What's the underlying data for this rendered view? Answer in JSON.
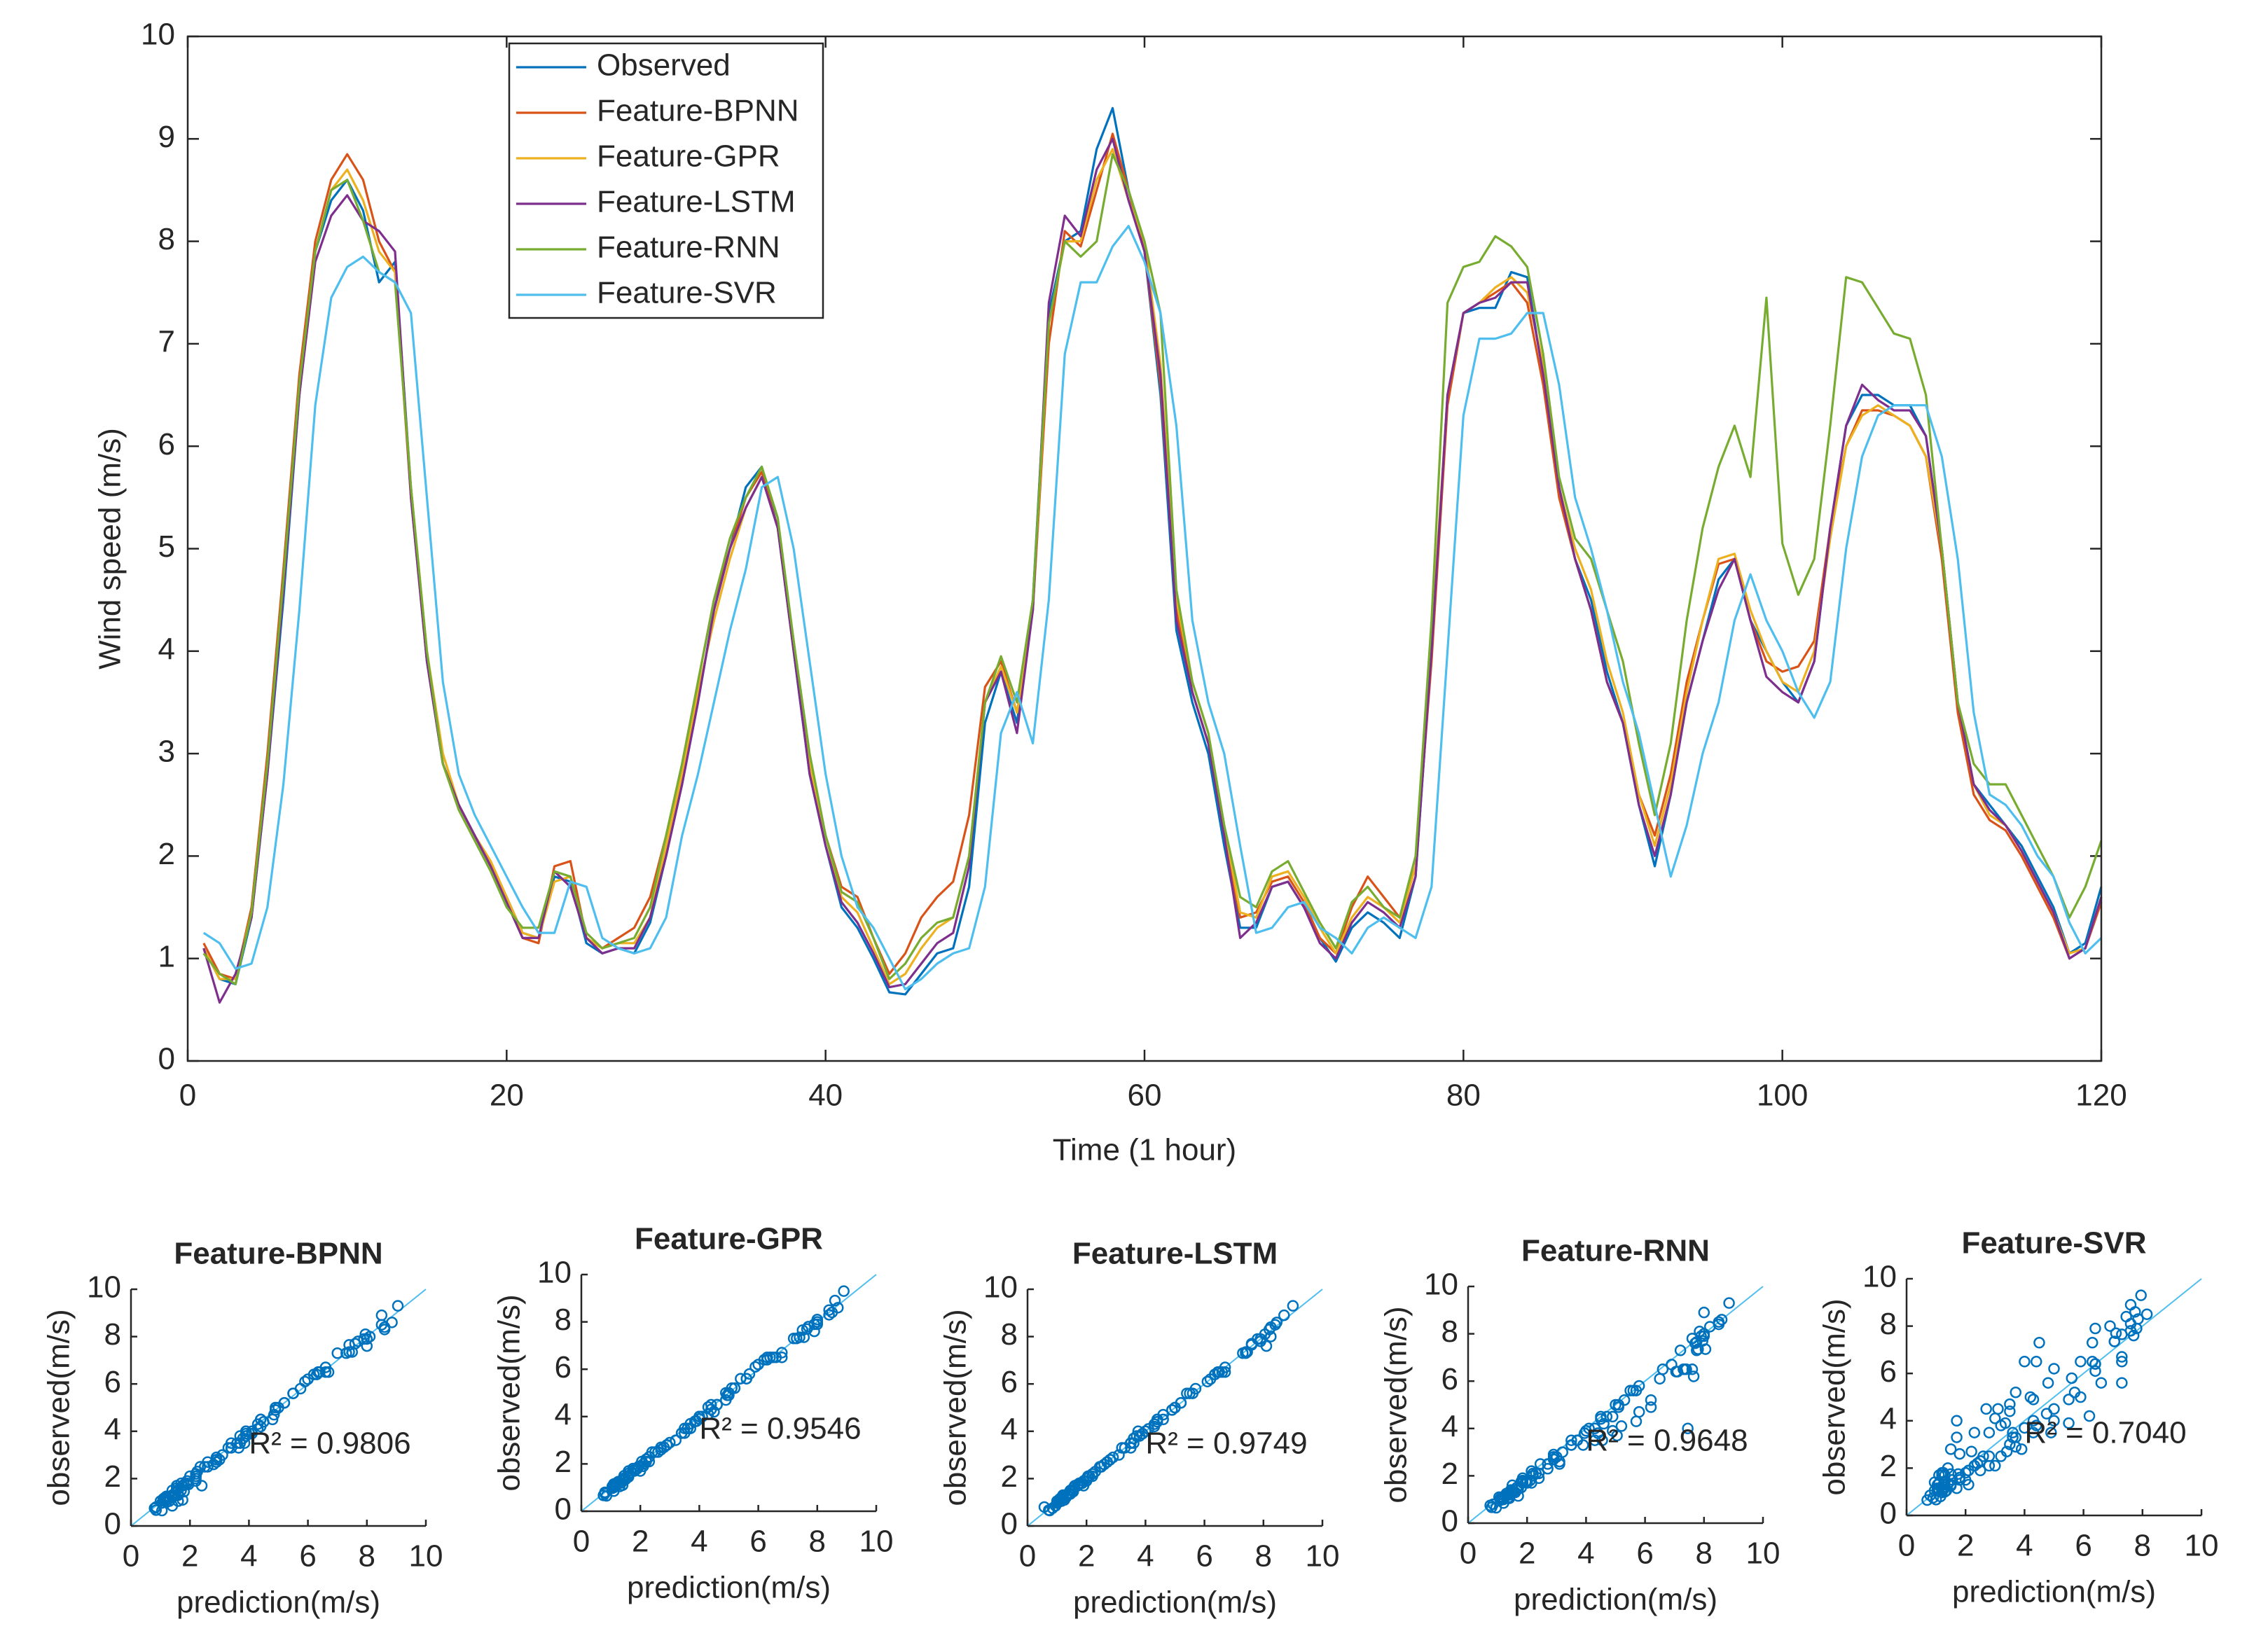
{
  "chart_data": [
    {
      "type": "line",
      "xlabel": "Time (1 hour)",
      "ylabel": "Wind speed (m/s)",
      "xlim": [
        0,
        120
      ],
      "ylim": [
        0,
        10
      ],
      "xticks": [
        0,
        20,
        40,
        60,
        80,
        100,
        120
      ],
      "yticks": [
        0,
        1,
        2,
        3,
        4,
        5,
        6,
        7,
        8,
        9,
        10
      ],
      "legend": "upper-left",
      "x": [
        1,
        2,
        3,
        4,
        5,
        6,
        7,
        8,
        9,
        10,
        11,
        12,
        13,
        14,
        15,
        16,
        17,
        18,
        19,
        20,
        21,
        22,
        23,
        24,
        25,
        26,
        27,
        28,
        29,
        30,
        31,
        32,
        33,
        34,
        35,
        36,
        37,
        38,
        39,
        40,
        41,
        42,
        43,
        44,
        45,
        46,
        47,
        48,
        49,
        50,
        51,
        52,
        53,
        54,
        55,
        56,
        57,
        58,
        59,
        60,
        61,
        62,
        63,
        64,
        65,
        66,
        67,
        68,
        69,
        70,
        71,
        72,
        73,
        74,
        75,
        76,
        77,
        78,
        79,
        80,
        81,
        82,
        83,
        84,
        85,
        86,
        87,
        88,
        89,
        90,
        91,
        92,
        93,
        94,
        95,
        96,
        97,
        98,
        99,
        100,
        101,
        102,
        103,
        104,
        105,
        106,
        107,
        108,
        109,
        110,
        111,
        112,
        113,
        114,
        115,
        116,
        117,
        118,
        119,
        120
      ],
      "series": [
        {
          "name": "Observed",
          "color": "#0072bd",
          "values": [
            1.1,
            0.8,
            0.75,
            1.4,
            2.8,
            4.5,
            6.5,
            7.9,
            8.4,
            8.6,
            8.3,
            7.6,
            7.8,
            5.6,
            3.9,
            2.9,
            2.5,
            2.2,
            1.9,
            1.6,
            1.25,
            1.2,
            1.8,
            1.75,
            1.15,
            1.05,
            1.1,
            1.05,
            1.35,
            2.0,
            2.7,
            3.5,
            4.4,
            5.0,
            5.6,
            5.8,
            5.2,
            4.0,
            2.8,
            2.1,
            1.5,
            1.3,
            1.0,
            0.67,
            0.65,
            0.85,
            1.05,
            1.1,
            1.7,
            3.3,
            3.8,
            3.3,
            4.5,
            7.3,
            8.0,
            8.1,
            8.9,
            9.3,
            8.5,
            7.9,
            6.5,
            4.2,
            3.5,
            3.0,
            2.1,
            1.3,
            1.3,
            1.7,
            1.75,
            1.5,
            1.2,
            0.97,
            1.3,
            1.45,
            1.35,
            1.2,
            1.8,
            4.0,
            6.5,
            7.3,
            7.35,
            7.35,
            7.7,
            7.65,
            6.7,
            5.6,
            4.9,
            4.5,
            3.8,
            3.3,
            2.5,
            1.9,
            2.6,
            3.5,
            4.1,
            4.7,
            4.9,
            4.3,
            4.0,
            3.7,
            3.5,
            3.9,
            5.2,
            6.2,
            6.5,
            6.5,
            6.4,
            6.4,
            6.1,
            5.0,
            3.5,
            2.7,
            2.5,
            2.3,
            2.1,
            1.8,
            1.5,
            1.05,
            1.15,
            1.7
          ]
        },
        {
          "name": "Feature-BPNN",
          "color": "#d95319",
          "values": [
            1.15,
            0.85,
            0.8,
            1.5,
            3.0,
            4.8,
            6.7,
            8.0,
            8.6,
            8.85,
            8.6,
            8.0,
            7.7,
            5.5,
            3.9,
            2.9,
            2.5,
            2.2,
            1.9,
            1.55,
            1.2,
            1.15,
            1.9,
            1.95,
            1.2,
            1.1,
            1.2,
            1.3,
            1.6,
            2.2,
            2.9,
            3.7,
            4.5,
            5.0,
            5.5,
            5.75,
            5.2,
            4.1,
            2.9,
            2.2,
            1.7,
            1.6,
            1.2,
            0.85,
            1.05,
            1.4,
            1.6,
            1.75,
            2.4,
            3.65,
            3.9,
            3.4,
            4.4,
            7.0,
            8.1,
            7.95,
            8.5,
            9.05,
            8.5,
            7.9,
            6.6,
            4.4,
            3.6,
            3.1,
            2.2,
            1.4,
            1.45,
            1.75,
            1.8,
            1.55,
            1.2,
            1.05,
            1.5,
            1.8,
            1.6,
            1.4,
            1.9,
            3.9,
            6.4,
            7.3,
            7.4,
            7.5,
            7.6,
            7.4,
            6.6,
            5.5,
            4.9,
            4.4,
            3.7,
            3.3,
            2.6,
            2.2,
            2.8,
            3.7,
            4.3,
            4.85,
            4.9,
            4.3,
            3.9,
            3.8,
            3.85,
            4.1,
            5.2,
            6.0,
            6.35,
            6.35,
            6.3,
            6.2,
            5.9,
            4.9,
            3.4,
            2.6,
            2.35,
            2.25,
            2.0,
            1.7,
            1.4,
            1.0,
            1.1,
            1.55
          ]
        },
        {
          "name": "Feature-GPR",
          "color": "#edb120",
          "values": [
            1.1,
            0.8,
            0.8,
            1.45,
            2.9,
            4.6,
            6.6,
            7.9,
            8.5,
            8.7,
            8.4,
            7.9,
            7.7,
            5.6,
            4.0,
            3.0,
            2.5,
            2.2,
            1.95,
            1.6,
            1.25,
            1.2,
            1.75,
            1.8,
            1.2,
            1.1,
            1.15,
            1.15,
            1.4,
            2.1,
            2.8,
            3.6,
            4.3,
            4.9,
            5.4,
            5.7,
            5.2,
            4.0,
            2.9,
            2.2,
            1.6,
            1.45,
            1.1,
            0.75,
            0.85,
            1.1,
            1.3,
            1.4,
            2.0,
            3.5,
            3.85,
            3.4,
            4.4,
            7.2,
            8.0,
            8.0,
            8.6,
            8.9,
            8.4,
            8.0,
            6.8,
            4.5,
            3.7,
            3.2,
            2.3,
            1.45,
            1.4,
            1.8,
            1.85,
            1.6,
            1.3,
            1.05,
            1.4,
            1.6,
            1.5,
            1.35,
            1.9,
            4.1,
            6.5,
            7.3,
            7.4,
            7.55,
            7.65,
            7.5,
            6.8,
            5.6,
            5.0,
            4.6,
            3.9,
            3.4,
            2.6,
            2.1,
            2.7,
            3.6,
            4.3,
            4.9,
            4.95,
            4.4,
            4.0,
            3.7,
            3.6,
            4.0,
            5.1,
            6.0,
            6.3,
            6.4,
            6.3,
            6.2,
            5.9,
            5.0,
            3.5,
            2.7,
            2.4,
            2.3,
            2.05,
            1.75,
            1.45,
            1.05,
            1.1,
            1.6
          ]
        },
        {
          "name": "Feature-LSTM",
          "color": "#7e2f8e",
          "values": [
            1.1,
            0.57,
            0.85,
            1.4,
            2.8,
            4.6,
            6.5,
            7.8,
            8.25,
            8.45,
            8.2,
            8.1,
            7.9,
            5.5,
            3.9,
            2.9,
            2.5,
            2.2,
            1.9,
            1.55,
            1.2,
            1.2,
            1.85,
            1.7,
            1.2,
            1.05,
            1.1,
            1.1,
            1.4,
            2.0,
            2.7,
            3.5,
            4.4,
            5.0,
            5.4,
            5.7,
            5.2,
            4.0,
            2.8,
            2.1,
            1.55,
            1.35,
            1.05,
            0.72,
            0.75,
            0.95,
            1.15,
            1.25,
            1.9,
            3.5,
            3.8,
            3.2,
            4.4,
            7.4,
            8.25,
            8.05,
            8.7,
            9.0,
            8.4,
            7.9,
            6.7,
            4.3,
            3.6,
            3.1,
            2.2,
            1.2,
            1.35,
            1.7,
            1.75,
            1.5,
            1.15,
            1.0,
            1.35,
            1.55,
            1.45,
            1.3,
            1.8,
            4.0,
            6.5,
            7.3,
            7.4,
            7.45,
            7.6,
            7.6,
            6.7,
            5.6,
            4.9,
            4.4,
            3.7,
            3.3,
            2.5,
            2.0,
            2.6,
            3.5,
            4.1,
            4.6,
            4.9,
            4.3,
            3.75,
            3.6,
            3.5,
            3.9,
            5.2,
            6.2,
            6.6,
            6.45,
            6.35,
            6.35,
            6.1,
            5.0,
            3.5,
            2.7,
            2.45,
            2.3,
            2.05,
            1.75,
            1.45,
            1.0,
            1.1,
            1.6
          ]
        },
        {
          "name": "Feature-RNN",
          "color": "#77ac30",
          "values": [
            1.05,
            0.85,
            0.75,
            1.45,
            2.9,
            4.7,
            6.6,
            7.9,
            8.5,
            8.6,
            8.2,
            7.7,
            7.6,
            5.6,
            4.0,
            2.9,
            2.45,
            2.15,
            1.85,
            1.5,
            1.3,
            1.3,
            1.85,
            1.8,
            1.25,
            1.1,
            1.15,
            1.2,
            1.5,
            2.2,
            2.9,
            3.7,
            4.5,
            5.1,
            5.5,
            5.8,
            5.3,
            4.1,
            3.0,
            2.2,
            1.65,
            1.55,
            1.2,
            0.8,
            0.95,
            1.2,
            1.35,
            1.4,
            2.0,
            3.5,
            3.95,
            3.5,
            4.5,
            7.2,
            8.0,
            7.85,
            8.0,
            8.85,
            8.5,
            8.0,
            7.3,
            4.6,
            3.7,
            3.2,
            2.3,
            1.6,
            1.5,
            1.85,
            1.95,
            1.65,
            1.35,
            1.1,
            1.55,
            1.7,
            1.5,
            1.4,
            2.0,
            4.3,
            7.4,
            7.75,
            7.8,
            8.05,
            7.95,
            7.75,
            6.9,
            5.7,
            5.1,
            4.9,
            4.4,
            3.9,
            3.1,
            2.4,
            3.1,
            4.3,
            5.2,
            5.8,
            6.2,
            5.7,
            7.45,
            5.05,
            4.55,
            4.9,
            6.2,
            7.65,
            7.6,
            7.35,
            7.1,
            7.05,
            6.5,
            5.0,
            3.5,
            2.9,
            2.7,
            2.7,
            2.4,
            2.1,
            1.8,
            1.4,
            1.7,
            2.15
          ]
        },
        {
          "name": "Feature-SVR",
          "color": "#4dbeee",
          "values": [
            1.25,
            1.15,
            0.9,
            0.95,
            1.5,
            2.7,
            4.4,
            6.4,
            7.45,
            7.75,
            7.85,
            7.7,
            7.6,
            7.3,
            5.5,
            3.7,
            2.8,
            2.4,
            2.1,
            1.8,
            1.5,
            1.25,
            1.25,
            1.75,
            1.7,
            1.2,
            1.1,
            1.05,
            1.1,
            1.4,
            2.2,
            2.8,
            3.5,
            4.2,
            4.8,
            5.6,
            5.7,
            5.0,
            3.9,
            2.8,
            2.0,
            1.5,
            1.3,
            1.0,
            0.7,
            0.8,
            0.95,
            1.05,
            1.1,
            1.7,
            3.2,
            3.6,
            3.1,
            4.5,
            6.9,
            7.6,
            7.6,
            7.95,
            8.15,
            7.8,
            7.3,
            6.2,
            4.3,
            3.5,
            3.0,
            2.1,
            1.25,
            1.3,
            1.5,
            1.55,
            1.3,
            1.2,
            1.05,
            1.3,
            1.4,
            1.3,
            1.2,
            1.7,
            4.0,
            6.3,
            7.05,
            7.05,
            7.1,
            7.3,
            7.3,
            6.6,
            5.5,
            5.0,
            4.4,
            3.7,
            3.2,
            2.5,
            1.8,
            2.3,
            3.0,
            3.5,
            4.3,
            4.75,
            4.3,
            4.0,
            3.6,
            3.35,
            3.7,
            5.0,
            5.9,
            6.3,
            6.4,
            6.4,
            6.4,
            5.9,
            4.9,
            3.4,
            2.6,
            2.5,
            2.3,
            2.0,
            1.8,
            1.35,
            1.05,
            1.2
          ]
        }
      ]
    },
    {
      "type": "scatter",
      "title": "Feature-BPNN",
      "annotation": "R² = 0.9806",
      "xlabel": "prediction(m/s)",
      "ylabel": "observed(m/s)",
      "xlim": [
        0,
        10
      ],
      "ylim": [
        0,
        10
      ],
      "xticks": [
        0,
        2,
        4,
        6,
        8,
        10
      ],
      "yticks": [
        0,
        2,
        4,
        6,
        8,
        10
      ],
      "color": "#0072bd"
    },
    {
      "type": "scatter",
      "title": "Feature-GPR",
      "annotation": "R² = 0.9546",
      "xlabel": "prediction(m/s)",
      "ylabel": "observed(m/s)",
      "xlim": [
        0,
        10
      ],
      "ylim": [
        0,
        10
      ],
      "xticks": [
        0,
        2,
        4,
        6,
        8,
        10
      ],
      "yticks": [
        0,
        2,
        4,
        6,
        8,
        10
      ],
      "color": "#0072bd"
    },
    {
      "type": "scatter",
      "title": "Feature-LSTM",
      "annotation": "R² = 0.9749",
      "xlabel": "prediction(m/s)",
      "ylabel": "observed(m/s)",
      "xlim": [
        0,
        10
      ],
      "ylim": [
        0,
        10
      ],
      "xticks": [
        0,
        2,
        4,
        6,
        8,
        10
      ],
      "yticks": [
        0,
        2,
        4,
        6,
        8,
        10
      ],
      "color": "#0072bd"
    },
    {
      "type": "scatter",
      "title": "Feature-RNN",
      "annotation": "R² = 0.9648",
      "xlabel": "prediction(m/s)",
      "ylabel": "observed(m/s)",
      "xlim": [
        0,
        10
      ],
      "ylim": [
        0,
        10
      ],
      "xticks": [
        0,
        2,
        4,
        6,
        8,
        10
      ],
      "yticks": [
        0,
        2,
        4,
        6,
        8,
        10
      ],
      "color": "#0072bd"
    },
    {
      "type": "scatter",
      "title": "Feature-SVR",
      "annotation": "R² = 0.7040",
      "xlabel": "prediction(m/s)",
      "ylabel": "observed(m/s)",
      "xlim": [
        0,
        10
      ],
      "ylim": [
        0,
        10
      ],
      "xticks": [
        0,
        2,
        4,
        6,
        8,
        10
      ],
      "yticks": [
        0,
        2,
        4,
        6,
        8,
        10
      ],
      "color": "#0072bd"
    }
  ]
}
